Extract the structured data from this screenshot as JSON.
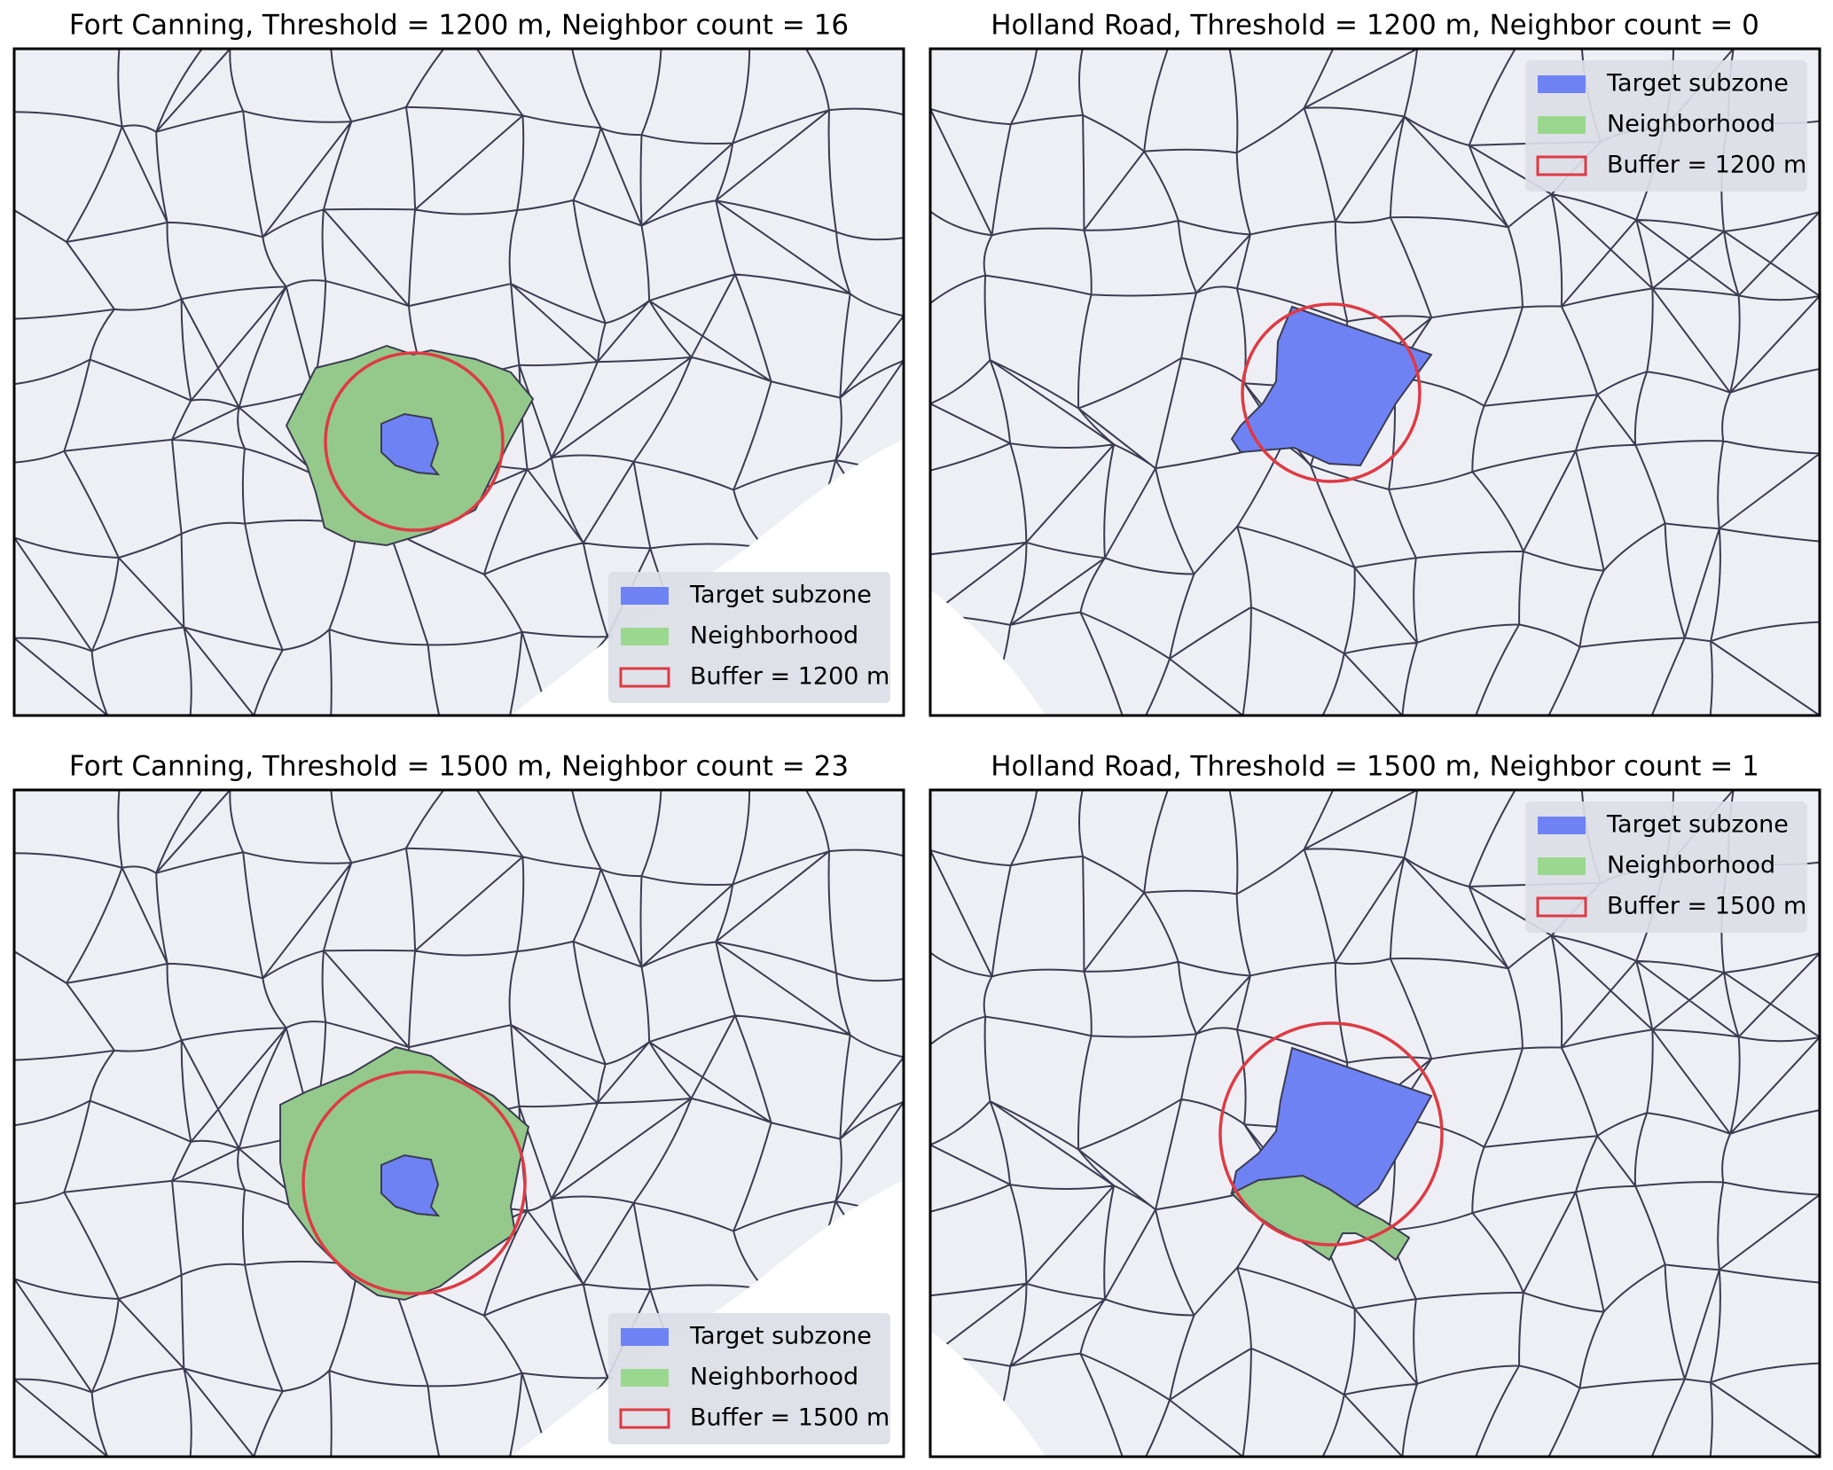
{
  "panels": [
    {
      "title": "Fort Canning, Threshold = 1200 m, Neighbor count = 16",
      "legend": [
        "Target subzone",
        "Neighborhood",
        "Buffer = 1200 m"
      ]
    },
    {
      "title": "Holland Road, Threshold = 1200 m, Neighbor count = 0",
      "legend": [
        "Target subzone",
        "Neighborhood",
        "Buffer = 1200 m"
      ]
    },
    {
      "title": "Fort Canning, Threshold = 1500 m, Neighbor count = 23",
      "legend": [
        "Target subzone",
        "Neighborhood",
        "Buffer = 1500 m"
      ]
    },
    {
      "title": "Holland Road, Threshold = 1500 m, Neighbor count = 1",
      "legend": [
        "Target subzone",
        "Neighborhood",
        "Buffer = 1500 m"
      ]
    }
  ]
}
